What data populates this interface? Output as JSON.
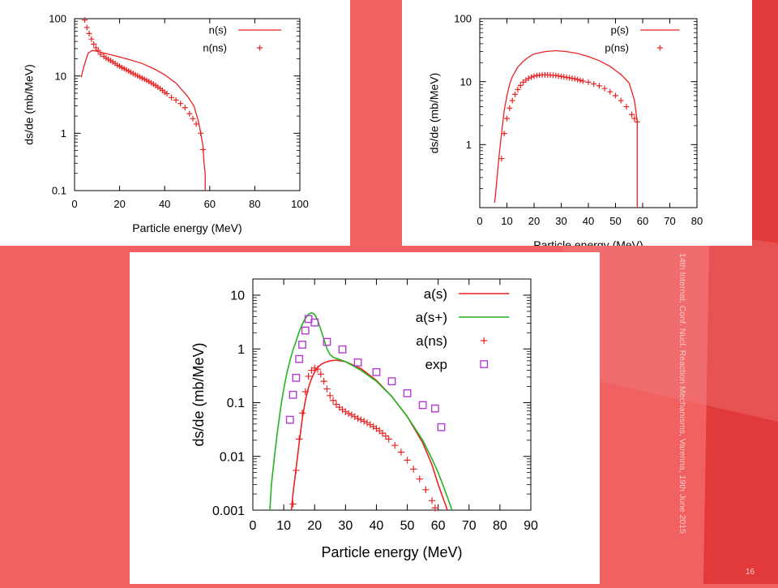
{
  "slide": {
    "side_note": "14th Internat. Conf. Nucl. Reaction Mechanisms, Varenna, 19th June 2015",
    "page_number": "16",
    "colors": {
      "background": "#f26161",
      "band": "#e53535",
      "panel": "#ffffff",
      "series_red": "#e82323",
      "series_green": "#22b422",
      "series_purple": "#b43cd0"
    }
  },
  "chart_data": [
    {
      "type": "line",
      "xlabel": "Particle energy (MeV)",
      "ylabel": "ds/de (mb/MeV)",
      "xlim": [
        0,
        100
      ],
      "ylim": [
        0.1,
        100
      ],
      "yscale": "log",
      "x_ticks": [
        "0",
        "20",
        "40",
        "60",
        "80",
        "100"
      ],
      "y_ticks": [
        "0.1",
        "1",
        "10",
        "100"
      ],
      "legend_position": "top-right",
      "series": [
        {
          "name": "n(s)",
          "style": "line",
          "color": "#e82323",
          "x": [
            3,
            4,
            6,
            8,
            10,
            15,
            20,
            25,
            30,
            35,
            40,
            45,
            50,
            53,
            55,
            56,
            57,
            57.5,
            58,
            58,
            58
          ],
          "y": [
            9.5,
            14,
            25,
            28,
            27,
            24,
            21.5,
            19,
            16.5,
            13.5,
            10.5,
            7.5,
            4.5,
            3,
            1.6,
            1.0,
            0.6,
            0.3,
            0.2,
            0.15,
            0.1
          ]
        },
        {
          "name": "n(ns)",
          "style": "markers",
          "color": "#e82323",
          "x": [
            4.5,
            5.5,
            6.5,
            7.5,
            8.5,
            9.5,
            10.5,
            11.5,
            13,
            14,
            15,
            16,
            17,
            18,
            19,
            20,
            21,
            22,
            23,
            24,
            25,
            26,
            27,
            28,
            29,
            30,
            31,
            32,
            33,
            34,
            35,
            36,
            37,
            38,
            39,
            40,
            41,
            43,
            45,
            47,
            49,
            51,
            52.5,
            54,
            56,
            57
          ],
          "y": [
            95,
            70,
            55,
            44,
            36,
            31,
            28,
            24,
            22,
            20.5,
            19.5,
            18.5,
            17.5,
            16.5,
            15.5,
            14.8,
            14,
            13.4,
            12.8,
            12.2,
            11.6,
            11,
            10.5,
            10,
            9.6,
            9.2,
            8.8,
            8.4,
            8.0,
            7.6,
            7.2,
            6.8,
            6.4,
            6.0,
            5.6,
            5.2,
            4.9,
            4.2,
            3.8,
            3.3,
            2.8,
            2.2,
            1.8,
            1.45,
            1.0,
            0.52
          ]
        }
      ]
    },
    {
      "type": "line",
      "xlabel": "Particle energy (MeV)",
      "ylabel": "ds/de (mb/MeV)",
      "xlim": [
        0,
        80
      ],
      "ylim": [
        0.1,
        100
      ],
      "yscale": "log",
      "x_ticks": [
        "0",
        "10",
        "20",
        "30",
        "40",
        "50",
        "60",
        "70",
        "80"
      ],
      "y_ticks": [
        "1",
        "10",
        "100"
      ],
      "legend_position": "top-right",
      "series": [
        {
          "name": "p(s)",
          "style": "line",
          "color": "#e82323",
          "x": [
            5.5,
            6,
            7,
            8,
            9,
            10,
            11,
            12,
            14,
            16,
            18,
            20,
            24,
            28,
            32,
            36,
            40,
            44,
            48,
            52,
            55,
            57,
            58,
            58,
            58
          ],
          "y": [
            0.12,
            0.2,
            0.6,
            1.5,
            3.5,
            6,
            9,
            12,
            17,
            21,
            24.5,
            27.5,
            30,
            31,
            30,
            28,
            25,
            21.5,
            17.5,
            13,
            9.5,
            5,
            2.3,
            0.5,
            0.1
          ]
        },
        {
          "name": "p(ns)",
          "style": "markers",
          "color": "#e82323",
          "x": [
            8,
            9,
            10,
            11,
            12,
            13,
            14,
            15,
            16,
            17,
            18,
            19,
            20,
            21,
            22,
            23,
            24,
            25,
            26,
            27,
            28,
            29,
            30,
            31,
            32,
            33,
            34,
            35,
            36,
            37,
            38,
            40,
            42,
            44,
            46,
            48,
            50,
            52,
            54,
            56,
            57,
            58
          ],
          "y": [
            0.6,
            1.5,
            2.6,
            3.8,
            5,
            6.3,
            7.5,
            8.7,
            9.8,
            10.6,
            11.3,
            11.8,
            12.2,
            12.5,
            12.7,
            12.8,
            12.8,
            12.8,
            12.7,
            12.6,
            12.5,
            12.3,
            12.1,
            11.9,
            11.7,
            11.5,
            11.3,
            11.1,
            10.8,
            10.5,
            10.2,
            9.8,
            9.2,
            8.6,
            7.8,
            6.9,
            6.0,
            5.0,
            4.0,
            3.0,
            2.6,
            2.3
          ]
        }
      ]
    },
    {
      "type": "line",
      "xlabel": "Particle energy (MeV)",
      "ylabel": "ds/de (mb/MeV)",
      "xlim": [
        0,
        90
      ],
      "ylim": [
        0.001,
        20
      ],
      "yscale": "log",
      "x_ticks": [
        "0",
        "10",
        "20",
        "30",
        "40",
        "50",
        "60",
        "70",
        "80",
        "90"
      ],
      "y_ticks": [
        "0.001",
        "0.01",
        "0.1",
        "1",
        "10"
      ],
      "legend_position": "top-right",
      "series": [
        {
          "name": "a(s)",
          "style": "line",
          "color": "#e82323",
          "x": [
            12.5,
            13,
            14,
            15,
            16,
            17,
            18,
            19,
            20,
            21,
            22,
            23,
            25,
            27,
            30,
            35,
            40,
            45,
            50,
            55,
            58,
            60,
            63
          ],
          "y": [
            0.001,
            0.002,
            0.006,
            0.018,
            0.05,
            0.11,
            0.19,
            0.28,
            0.37,
            0.45,
            0.51,
            0.55,
            0.6,
            0.62,
            0.58,
            0.43,
            0.26,
            0.13,
            0.055,
            0.018,
            0.007,
            0.003,
            0.001
          ]
        },
        {
          "name": "a(s+)",
          "style": "line",
          "color": "#22b422",
          "x": [
            5.5,
            6,
            7,
            8,
            9,
            10,
            11,
            12,
            13,
            14,
            15,
            16,
            17,
            18,
            19,
            20,
            21,
            22,
            23,
            24,
            25,
            26,
            28,
            30,
            35,
            40,
            45,
            50,
            55,
            58,
            60,
            62,
            64.5
          ],
          "y": [
            0.001,
            0.003,
            0.01,
            0.03,
            0.08,
            0.18,
            0.35,
            0.6,
            0.95,
            1.4,
            2.1,
            2.9,
            3.7,
            4.4,
            4.7,
            4.4,
            3.4,
            2.3,
            1.5,
            1.0,
            0.78,
            0.7,
            0.64,
            0.58,
            0.4,
            0.25,
            0.13,
            0.055,
            0.02,
            0.009,
            0.005,
            0.0025,
            0.001
          ]
        },
        {
          "name": "a(ns)",
          "style": "markers",
          "color": "#e82323",
          "x": [
            13,
            14,
            15,
            16,
            17,
            18,
            19,
            20,
            21,
            22,
            23,
            24,
            25,
            26,
            27,
            28,
            29,
            30,
            31,
            32,
            33,
            34,
            35,
            36,
            37,
            38,
            39,
            40,
            41,
            42,
            43,
            44,
            46,
            48,
            50,
            52,
            54,
            56,
            58,
            59
          ],
          "y": [
            0.0013,
            0.0055,
            0.021,
            0.064,
            0.16,
            0.31,
            0.4,
            0.44,
            0.42,
            0.34,
            0.25,
            0.18,
            0.135,
            0.11,
            0.093,
            0.082,
            0.074,
            0.068,
            0.063,
            0.059,
            0.055,
            0.051,
            0.048,
            0.045,
            0.042,
            0.039,
            0.036,
            0.033,
            0.03,
            0.027,
            0.024,
            0.021,
            0.016,
            0.012,
            0.0085,
            0.0058,
            0.0038,
            0.0024,
            0.0015,
            0.0011
          ]
        },
        {
          "name": "exp",
          "style": "markers",
          "color": "#b43cd0",
          "x": [
            12,
            13,
            14,
            15,
            16,
            17,
            18,
            20,
            24,
            29,
            34,
            40,
            45,
            50,
            55,
            59,
            61
          ],
          "y": [
            0.048,
            0.14,
            0.29,
            0.65,
            1.2,
            2.2,
            3.6,
            3.1,
            1.35,
            0.98,
            0.56,
            0.37,
            0.25,
            0.15,
            0.09,
            0.078,
            0.035
          ]
        }
      ]
    }
  ]
}
